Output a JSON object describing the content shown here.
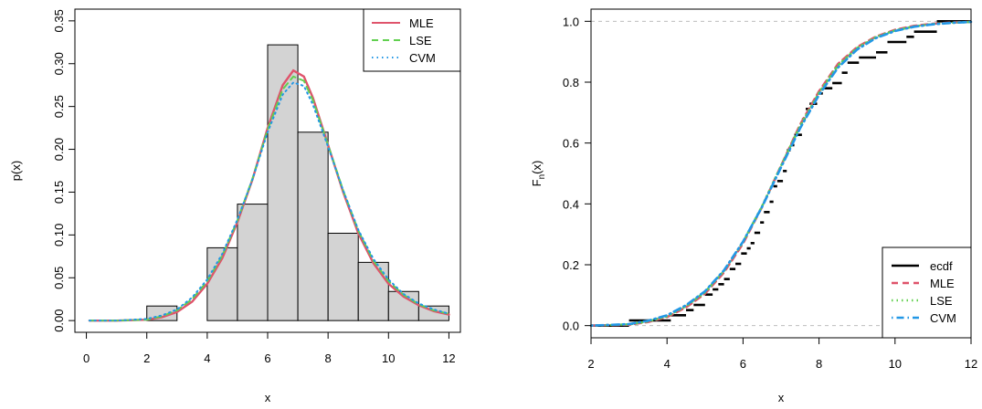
{
  "chart_data": [
    {
      "type": "histogram",
      "xlabel": "x",
      "ylabel": "p(x)",
      "xlim": [
        0,
        12
      ],
      "ylim": [
        0,
        0.35
      ],
      "xticks": [
        "0",
        "2",
        "4",
        "6",
        "8",
        "10",
        "12"
      ],
      "yticks": [
        "0.00",
        "0.05",
        "0.10",
        "0.15",
        "0.20",
        "0.25",
        "0.30",
        "0.35"
      ],
      "bins": [
        {
          "from": 2,
          "to": 3,
          "value": 0.017
        },
        {
          "from": 3,
          "to": 4,
          "value": 0.0
        },
        {
          "from": 4,
          "to": 5,
          "value": 0.085
        },
        {
          "from": 5,
          "to": 6,
          "value": 0.136
        },
        {
          "from": 6,
          "to": 7,
          "value": 0.322
        },
        {
          "from": 7,
          "to": 8,
          "value": 0.22
        },
        {
          "from": 8,
          "to": 9,
          "value": 0.102
        },
        {
          "from": 9,
          "to": 10,
          "value": 0.068
        },
        {
          "from": 10,
          "to": 11,
          "value": 0.034
        },
        {
          "from": 11,
          "to": 12,
          "value": 0.017
        }
      ],
      "series": [
        {
          "name": "MLE",
          "color": "#DF536B",
          "style": "solid",
          "x": [
            0.1,
            1,
            2,
            2.5,
            3,
            3.5,
            4,
            4.5,
            5,
            5.5,
            6,
            6.5,
            6.85,
            7.2,
            7.5,
            8,
            8.5,
            9,
            9.5,
            10,
            10.5,
            11,
            11.5,
            12
          ],
          "y": [
            0.0,
            0.0,
            0.001,
            0.004,
            0.01,
            0.022,
            0.043,
            0.073,
            0.115,
            0.165,
            0.225,
            0.275,
            0.292,
            0.285,
            0.26,
            0.205,
            0.15,
            0.102,
            0.067,
            0.043,
            0.028,
            0.018,
            0.011,
            0.007
          ]
        },
        {
          "name": "LSE",
          "color": "#61D04F",
          "style": "dashed",
          "x": [
            0.1,
            1,
            2,
            2.5,
            3,
            3.5,
            4,
            4.5,
            5,
            5.5,
            6,
            6.5,
            6.85,
            7.2,
            7.5,
            8,
            8.5,
            9,
            9.5,
            10,
            10.5,
            11,
            11.5,
            12
          ],
          "y": [
            0.0,
            0.0,
            0.001,
            0.005,
            0.012,
            0.025,
            0.046,
            0.076,
            0.117,
            0.166,
            0.223,
            0.27,
            0.285,
            0.28,
            0.257,
            0.205,
            0.152,
            0.105,
            0.07,
            0.046,
            0.03,
            0.019,
            0.012,
            0.008
          ]
        },
        {
          "name": "CVM",
          "color": "#2297E6",
          "style": "dotted",
          "x": [
            0.1,
            1,
            2,
            2.5,
            3,
            3.5,
            4,
            4.5,
            5,
            5.5,
            6,
            6.5,
            6.85,
            7.2,
            7.5,
            8,
            8.5,
            9,
            9.5,
            10,
            10.5,
            11,
            11.5,
            12
          ],
          "y": [
            0.0,
            0.0,
            0.002,
            0.006,
            0.013,
            0.027,
            0.048,
            0.078,
            0.118,
            0.165,
            0.22,
            0.264,
            0.278,
            0.274,
            0.252,
            0.203,
            0.152,
            0.106,
            0.072,
            0.048,
            0.031,
            0.02,
            0.013,
            0.008
          ]
        }
      ],
      "legend": {
        "position": "top-right",
        "entries": [
          "MLE",
          "LSE",
          "CVM"
        ]
      }
    },
    {
      "type": "line",
      "xlabel": "x",
      "ylabel": "F",
      "ylabel_sub": "n",
      "ylabel_tail": "(x)",
      "xlim": [
        2,
        12
      ],
      "ylim": [
        0,
        1
      ],
      "xticks": [
        "2",
        "4",
        "6",
        "8",
        "10",
        "12"
      ],
      "yticks": [
        "0.0",
        "0.2",
        "0.4",
        "0.6",
        "0.8",
        "1.0"
      ],
      "reference_lines": [
        0,
        1
      ],
      "ecdf": {
        "name": "ecdf",
        "color": "#000000",
        "x": [
          3.0,
          4.1,
          4.5,
          4.7,
          5.0,
          5.2,
          5.35,
          5.5,
          5.65,
          5.8,
          5.95,
          6.1,
          6.2,
          6.3,
          6.45,
          6.55,
          6.7,
          6.8,
          6.9,
          7.05,
          7.15,
          7.25,
          7.35,
          7.55,
          7.65,
          7.75,
          7.95,
          8.1,
          8.35,
          8.6,
          8.75,
          9.05,
          9.5,
          9.8,
          10.3,
          10.5,
          11.1
        ],
        "y": [
          0.017,
          0.034,
          0.051,
          0.068,
          0.102,
          0.119,
          0.136,
          0.153,
          0.186,
          0.203,
          0.237,
          0.254,
          0.271,
          0.305,
          0.339,
          0.373,
          0.407,
          0.458,
          0.475,
          0.508,
          0.576,
          0.593,
          0.627,
          0.678,
          0.712,
          0.729,
          0.763,
          0.78,
          0.797,
          0.831,
          0.864,
          0.881,
          0.898,
          0.932,
          0.949,
          0.966,
          1.0
        ]
      },
      "series": [
        {
          "name": "MLE",
          "color": "#DF536B",
          "style": "dashed",
          "x": [
            2,
            3,
            3.5,
            4,
            4.5,
            5,
            5.5,
            6,
            6.5,
            7,
            7.5,
            8,
            8.5,
            9,
            9.5,
            10,
            10.5,
            11,
            11.5,
            12
          ],
          "y": [
            0.0,
            0.003,
            0.012,
            0.028,
            0.06,
            0.105,
            0.175,
            0.27,
            0.39,
            0.525,
            0.66,
            0.77,
            0.86,
            0.915,
            0.95,
            0.972,
            0.985,
            0.992,
            0.996,
            0.998
          ]
        },
        {
          "name": "LSE",
          "color": "#61D04F",
          "style": "dotted",
          "x": [
            2,
            3,
            3.5,
            4,
            4.5,
            5,
            5.5,
            6,
            6.5,
            7,
            7.5,
            8,
            8.5,
            9,
            9.5,
            10,
            10.5,
            11,
            11.5,
            12
          ],
          "y": [
            0.0,
            0.004,
            0.014,
            0.031,
            0.064,
            0.11,
            0.18,
            0.275,
            0.392,
            0.525,
            0.655,
            0.765,
            0.855,
            0.912,
            0.948,
            0.97,
            0.983,
            0.991,
            0.995,
            0.998
          ]
        },
        {
          "name": "CVM",
          "color": "#2297E6",
          "style": "dotdash",
          "x": [
            2,
            3,
            3.5,
            4,
            4.5,
            5,
            5.5,
            6,
            6.5,
            7,
            7.5,
            8,
            8.5,
            9,
            9.5,
            10,
            10.5,
            11,
            11.5,
            12
          ],
          "y": [
            0.0,
            0.005,
            0.016,
            0.034,
            0.067,
            0.113,
            0.182,
            0.276,
            0.39,
            0.52,
            0.648,
            0.758,
            0.848,
            0.907,
            0.945,
            0.968,
            0.982,
            0.99,
            0.995,
            0.998
          ]
        }
      ],
      "legend": {
        "position": "bottom-right",
        "entries": [
          "ecdf",
          "MLE",
          "LSE",
          "CVM"
        ]
      }
    }
  ]
}
